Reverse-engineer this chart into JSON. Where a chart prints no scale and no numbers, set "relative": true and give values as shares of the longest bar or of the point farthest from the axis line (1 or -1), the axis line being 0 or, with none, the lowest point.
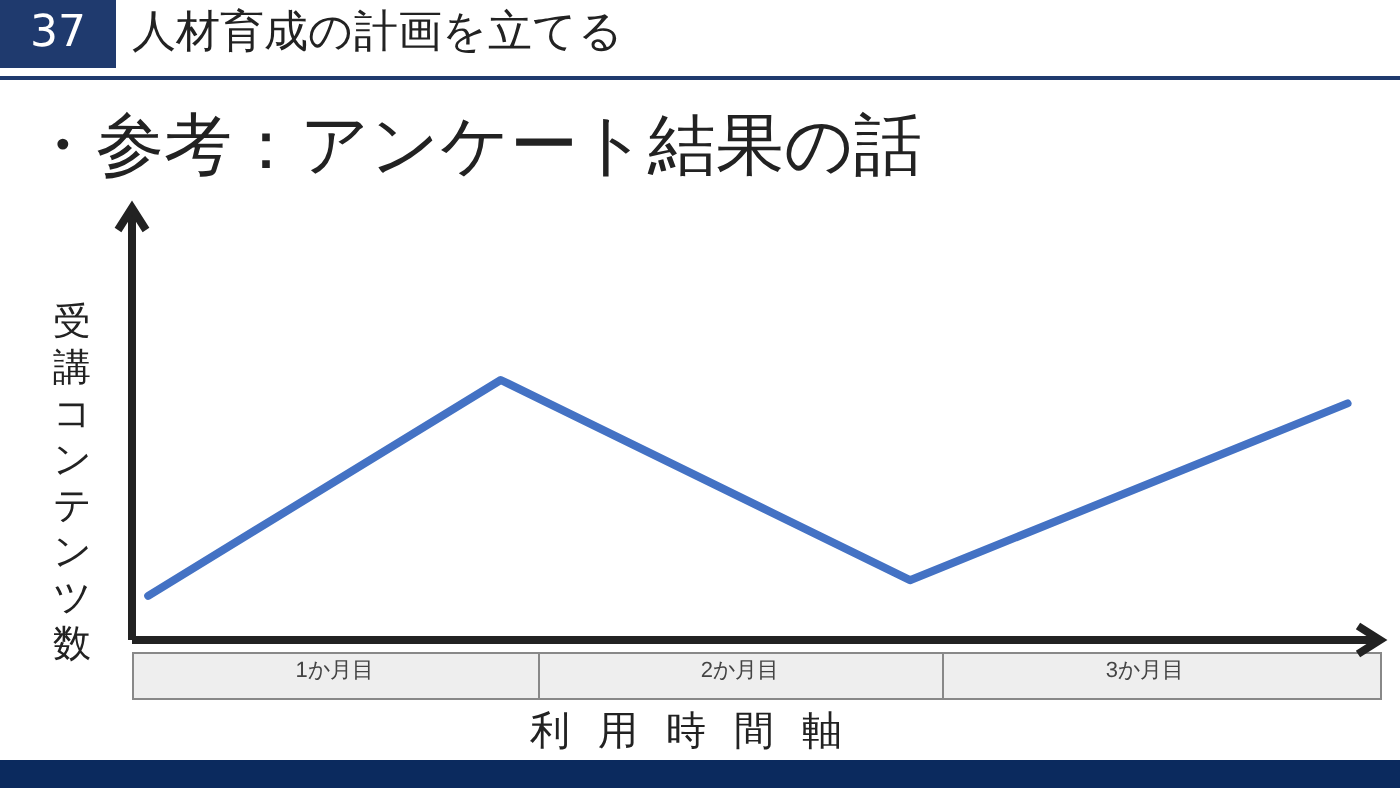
{
  "chart_data": {
    "type": "line",
    "title": "人材育成の計画を立てる",
    "subtitle": "・参考：アンケート結果の話",
    "annotations": [
      "37"
    ],
    "xlabel": "利用時間軸",
    "ylabel": "受講コンテンツ数",
    "relative": true,
    "tick_labels": "x",
    "marker": "none",
    "grid": false,
    "legend": false,
    "x": [
      0.04,
      0.91,
      1.92,
      3.0
    ],
    "xlim": [
      0,
      3.08
    ],
    "xticks": [
      {
        "value": 0.5,
        "label": "1か月目"
      },
      {
        "value": 1.5,
        "label": "2か月目"
      },
      {
        "value": 2.5,
        "label": "3か月目"
      }
    ],
    "series": [
      {
        "color": "#4472c4",
        "values": [
          0.17,
          1,
          0.23,
          0.91
        ]
      }
    ]
  }
}
